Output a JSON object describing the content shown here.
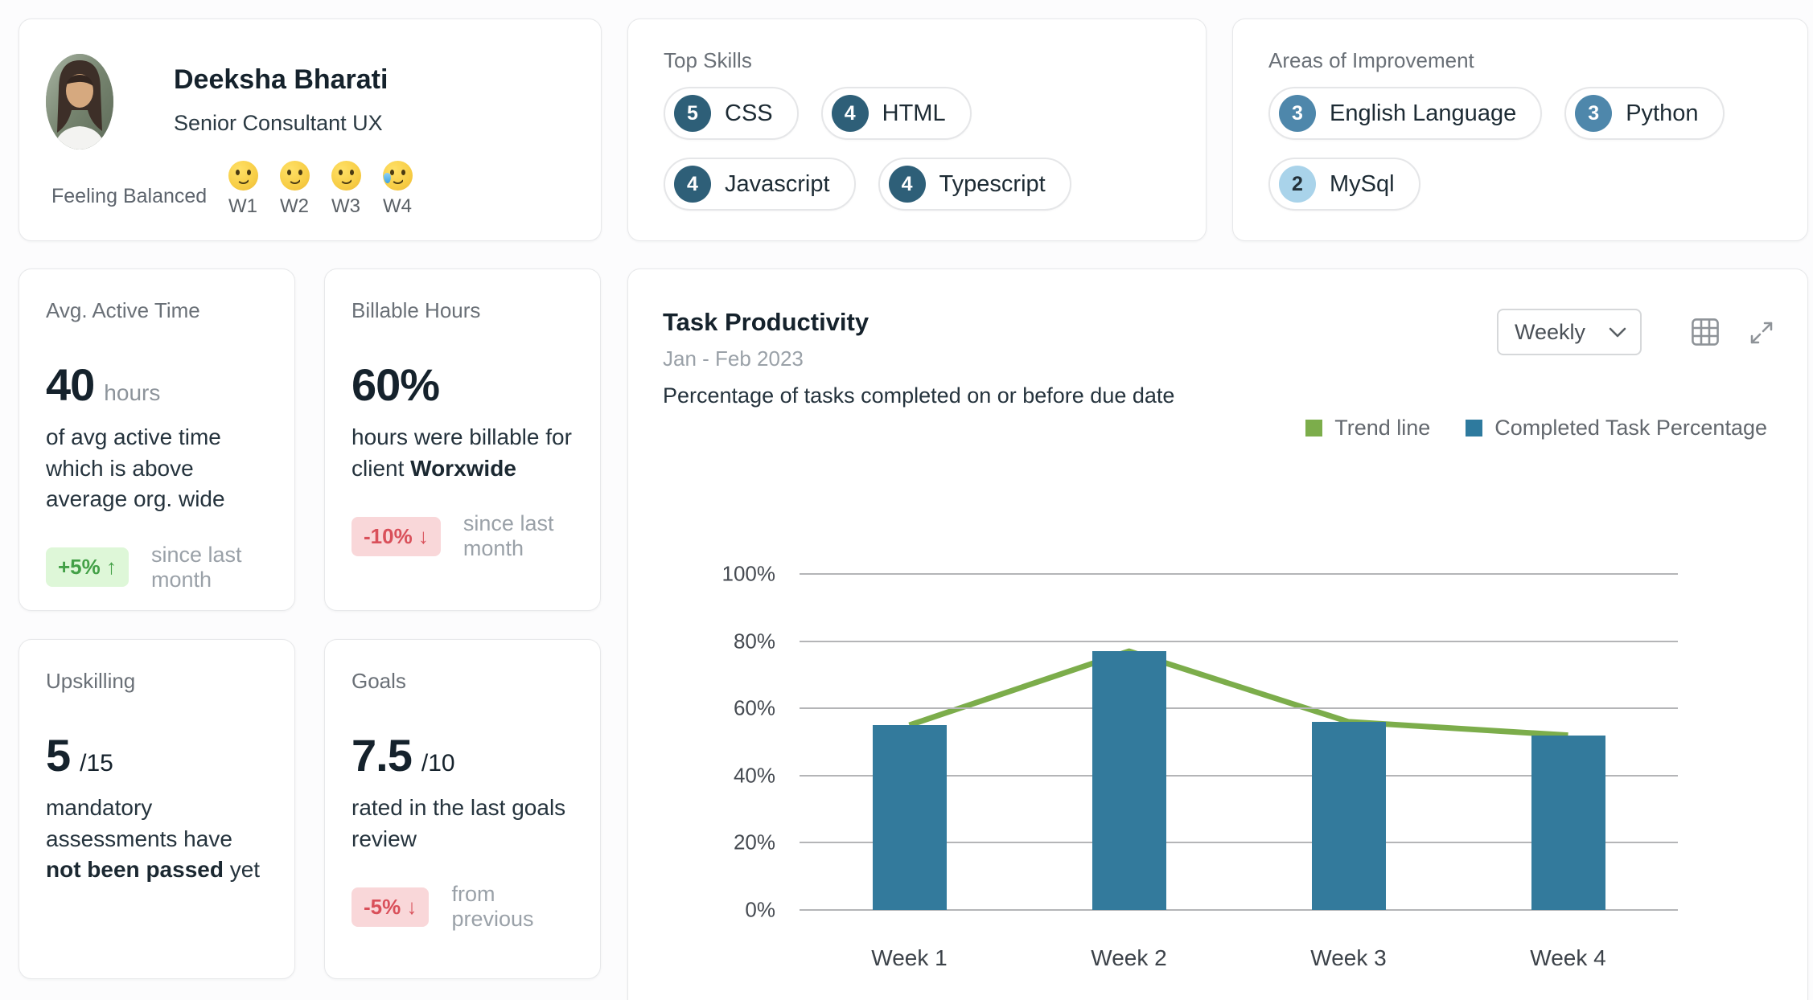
{
  "colors": {
    "bar": "#337a9c",
    "trend_line": "#7cad4b",
    "skill_dark": "#2e5f78",
    "skill_medium": "#4e87ab",
    "skill_light": "#a9d3ea",
    "delta_up_bg": "#def7d8",
    "delta_up_text": "#43a047",
    "delta_down_bg": "#f9d7d9",
    "delta_down_text": "#d9505a"
  },
  "badge_styles": {
    "dark": "#2e5f78",
    "medium": "#4e87ab",
    "light": "#a9d3ea"
  },
  "icons": {
    "chevron_down": "chevron-down-icon",
    "table_grid": "table-grid-icon",
    "expand": "expand-icon"
  },
  "profile": {
    "name": "Deeksha Bharati",
    "role": "Senior Consultant UX",
    "feeling_label": "Feeling Balanced",
    "moods": [
      {
        "week": "W1",
        "mood": "slightly-smiling"
      },
      {
        "week": "W2",
        "mood": "slightly-smiling"
      },
      {
        "week": "W3",
        "mood": "slightly-smiling"
      },
      {
        "week": "W4",
        "mood": "smiling-with-tear"
      }
    ]
  },
  "top_skills": {
    "title": "Top Skills",
    "badges": [
      {
        "count": "5",
        "label": "CSS",
        "style": "dark"
      },
      {
        "count": "4",
        "label": "HTML",
        "style": "dark"
      },
      {
        "count": "4",
        "label": "Javascript",
        "style": "dark"
      },
      {
        "count": "4",
        "label": "Typescript",
        "style": "dark"
      }
    ]
  },
  "areas_of_improvement": {
    "title": "Areas of Improvement",
    "badges": [
      {
        "count": "3",
        "label": "English Language",
        "style": "medium"
      },
      {
        "count": "3",
        "label": "Python",
        "style": "medium"
      },
      {
        "count": "2",
        "label": "MySql",
        "style": "light"
      }
    ]
  },
  "stats": {
    "active_time": {
      "title": "Avg. Active Time",
      "value": "40",
      "value_suffix": "hours",
      "desc_parts": [
        {
          "text": "of avg active time which is above average org. wide"
        }
      ],
      "delta": "+5% ↑",
      "delta_type": "up",
      "delta_caption": "since last month"
    },
    "billable": {
      "title": "Billable Hours",
      "value": "60%",
      "desc_parts": [
        {
          "text": "hours were billable for client "
        },
        {
          "text": "Worxwide",
          "bold": true
        }
      ],
      "delta": "-10% ↓",
      "delta_type": "down",
      "delta_caption": "since last month"
    },
    "upskilling": {
      "title": "Upskilling",
      "value": "5",
      "value_suffix": "/15",
      "desc_parts": [
        {
          "text": "mandatory assessments have "
        },
        {
          "text": "not been passed",
          "bold": true
        },
        {
          "text": " yet"
        }
      ]
    },
    "goals": {
      "title": "Goals",
      "value": "7.5",
      "value_suffix": "/10",
      "desc_parts": [
        {
          "text": "rated in the last goals review"
        }
      ],
      "delta": "-5% ↓",
      "delta_type": "down",
      "delta_caption": "from previous"
    }
  },
  "chart_card": {
    "title": "Task Productivity",
    "subtitle": "Jan - Feb 2023",
    "description": "Percentage of tasks completed on or before due date",
    "period_selector": "Weekly",
    "legend": [
      {
        "label": "Trend line",
        "color": "#7cad4b"
      },
      {
        "label": "Completed Task Percentage",
        "color": "#2e7a9e"
      }
    ]
  },
  "chart_data": {
    "type": "bar",
    "title": "Task Productivity",
    "subtitle": "Jan - Feb 2023",
    "categories": [
      "Week 1",
      "Week 2",
      "Week 3",
      "Week 4"
    ],
    "series": [
      {
        "name": "Completed Task Percentage",
        "type": "bar",
        "values": [
          55,
          77,
          56,
          52
        ],
        "color": "#337a9c"
      },
      {
        "name": "Trend line",
        "type": "line",
        "values": [
          55,
          77,
          56,
          52
        ],
        "color": "#7cad4b"
      }
    ],
    "xlabel": "",
    "ylabel": "",
    "ylim": [
      0,
      100
    ],
    "ytick_step": 20,
    "yticks": [
      "0%",
      "20%",
      "40%",
      "60%",
      "80%",
      "100%"
    ],
    "grid": true,
    "legend_position": "top-right"
  }
}
